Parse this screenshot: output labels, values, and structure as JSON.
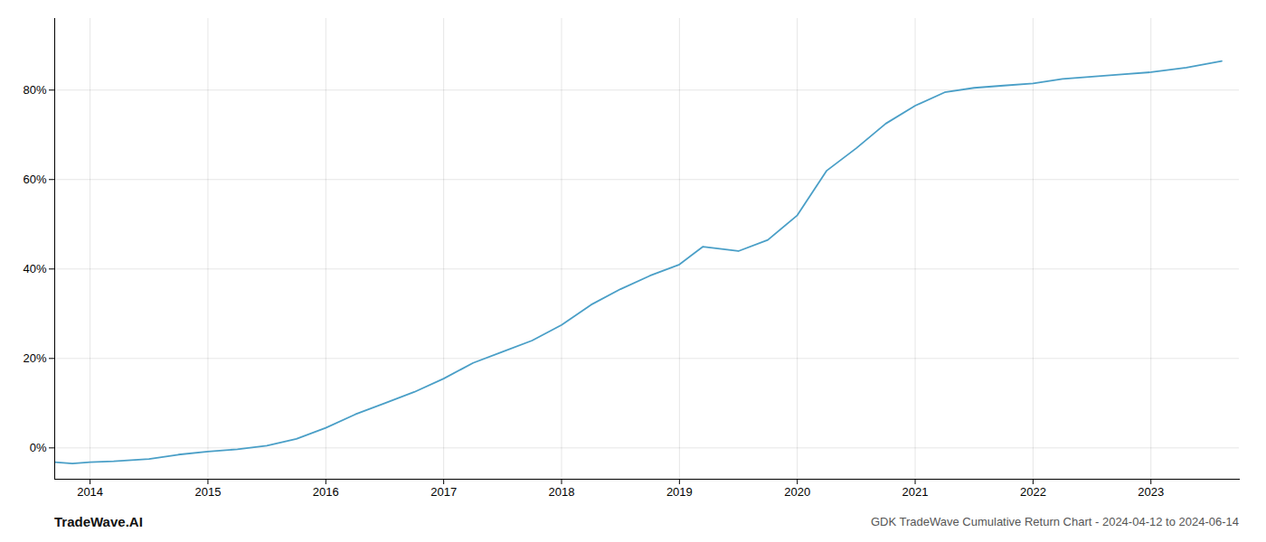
{
  "chart_data": {
    "type": "line",
    "x": [
      2013.7,
      2013.85,
      2014.0,
      2014.2,
      2014.5,
      2014.75,
      2015.0,
      2015.25,
      2015.5,
      2015.75,
      2016.0,
      2016.25,
      2016.5,
      2016.75,
      2017.0,
      2017.25,
      2017.5,
      2017.75,
      2018.0,
      2018.25,
      2018.5,
      2018.75,
      2019.0,
      2019.2,
      2019.5,
      2019.75,
      2020.0,
      2020.25,
      2020.5,
      2020.75,
      2021.0,
      2021.25,
      2021.5,
      2021.75,
      2022.0,
      2022.25,
      2022.5,
      2022.75,
      2023.0,
      2023.3,
      2023.6
    ],
    "values": [
      -3.2,
      -3.5,
      -3.2,
      -3.0,
      -2.5,
      -1.5,
      -0.8,
      -0.3,
      0.5,
      2.0,
      4.5,
      7.5,
      10.0,
      12.5,
      15.5,
      19.0,
      21.5,
      24.0,
      27.5,
      32.0,
      35.5,
      38.5,
      41.0,
      45.0,
      44.0,
      46.5,
      52.0,
      62.0,
      67.0,
      72.5,
      76.5,
      79.5,
      80.5,
      81.0,
      81.5,
      82.5,
      83.0,
      83.5,
      84.0,
      85.0,
      86.5
    ],
    "color": "#4a9fc7",
    "xlim": [
      2013.7,
      2023.75
    ],
    "xticks": [
      2014,
      2015,
      2016,
      2017,
      2018,
      2019,
      2020,
      2021,
      2022,
      2023
    ],
    "ylim": [
      -7,
      96
    ],
    "yticks": [
      {
        "value": 0,
        "label": "0%"
      },
      {
        "value": 20,
        "label": "20%"
      },
      {
        "value": 40,
        "label": "40%"
      },
      {
        "value": 60,
        "label": "60%"
      },
      {
        "value": 80,
        "label": "80%"
      }
    ],
    "grid": true,
    "annotations": [
      "TradeWave.AI",
      "GDK TradeWave Cumulative Return Chart - 2024-04-12 to 2024-06-14"
    ]
  }
}
